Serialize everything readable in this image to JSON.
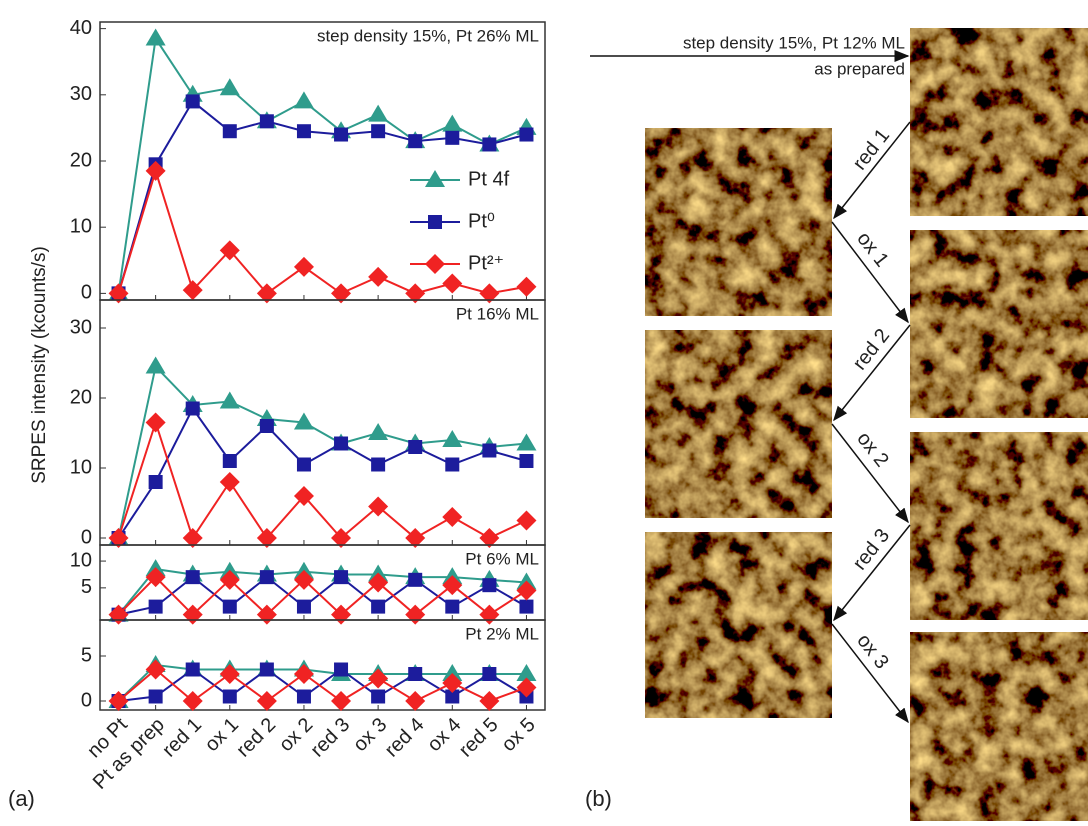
{
  "figure": {
    "panel_a_label": "(a)",
    "panel_b_label": "(b)",
    "ylabel": "SRPES intensity (kcounts/s)"
  },
  "chart_data": [
    {
      "type": "line",
      "annotation": "step density 15%,  Pt 26% ML",
      "legend": "right",
      "categories": [
        "no Pt",
        "Pt as prep",
        "red 1",
        "ox 1",
        "red 2",
        "ox 2",
        "red 3",
        "ox 3",
        "red 4",
        "ox 4",
        "red 5",
        "ox 5"
      ],
      "ylim": [
        -1,
        41
      ],
      "yticks": [
        0,
        10,
        20,
        30,
        40
      ],
      "series": [
        {
          "name": "Pt 4f",
          "color": "#2f9c8c",
          "marker": "triangle",
          "values": [
            0,
            38.5,
            30,
            31,
            26,
            29,
            24.5,
            27,
            23,
            25.5,
            22.5,
            25
          ]
        },
        {
          "name": "Pt⁰",
          "color": "#1c1c9c",
          "marker": "square",
          "values": [
            0,
            19.5,
            29,
            24.5,
            26,
            24.5,
            24,
            24.5,
            23,
            23.5,
            22.5,
            24
          ]
        },
        {
          "name": "Pt²⁺",
          "color": "#f02323",
          "marker": "diamond",
          "values": [
            0,
            18.5,
            0.5,
            6.5,
            0,
            4,
            0,
            2.5,
            0,
            1.5,
            0,
            1
          ]
        }
      ]
    },
    {
      "type": "line",
      "annotation": "Pt 16% ML",
      "ylim": [
        -1,
        34
      ],
      "yticks": [
        0,
        10,
        20,
        30
      ],
      "series": [
        {
          "color": "#2f9c8c",
          "marker": "triangle",
          "values": [
            0,
            24.5,
            19,
            19.5,
            17,
            16.5,
            13.5,
            15,
            13.5,
            14,
            13,
            13.5
          ]
        },
        {
          "color": "#1c1c9c",
          "marker": "square",
          "values": [
            0,
            8,
            18.5,
            11,
            16,
            10.5,
            13.5,
            10.5,
            13,
            10.5,
            12.5,
            11
          ]
        },
        {
          "color": "#f02323",
          "marker": "diamond",
          "values": [
            0,
            16.5,
            0,
            8,
            0,
            6,
            0,
            4.5,
            0,
            3,
            0,
            2.5
          ]
        }
      ]
    },
    {
      "type": "line",
      "annotation": "Pt 6% ML",
      "ylim": [
        -1,
        13
      ],
      "yticks": [
        5,
        10
      ],
      "series": [
        {
          "color": "#2f9c8c",
          "marker": "triangle",
          "values": [
            0,
            8.5,
            7.5,
            8,
            7.5,
            8,
            7.5,
            7.5,
            7,
            7,
            6.5,
            6
          ]
        },
        {
          "color": "#1c1c9c",
          "marker": "square",
          "values": [
            0,
            1.5,
            7,
            1.5,
            7,
            1.5,
            7,
            1.5,
            6.5,
            1.5,
            5.5,
            1.5
          ]
        },
        {
          "color": "#f02323",
          "marker": "diamond",
          "values": [
            0,
            7,
            0,
            6.5,
            0,
            6.5,
            0,
            6,
            0,
            5.5,
            0,
            4.5
          ]
        }
      ]
    },
    {
      "type": "line",
      "annotation": "Pt 2% ML",
      "ylim": [
        -1,
        9
      ],
      "yticks": [
        0,
        5
      ],
      "series": [
        {
          "color": "#2f9c8c",
          "marker": "triangle",
          "values": [
            0,
            4,
            3.5,
            3.5,
            3.5,
            3.5,
            3,
            3,
            3,
            3,
            3,
            3
          ]
        },
        {
          "color": "#1c1c9c",
          "marker": "square",
          "values": [
            0,
            0.5,
            3.5,
            0.5,
            3.5,
            0.5,
            3.5,
            0.5,
            3,
            0.5,
            3,
            0.5
          ]
        },
        {
          "color": "#f02323",
          "marker": "diamond",
          "values": [
            0,
            3.5,
            0,
            3,
            0,
            3,
            0,
            2.5,
            0,
            2,
            0,
            1.5
          ]
        }
      ]
    }
  ],
  "diagram": {
    "header": "step density 15%, Pt 12% ML",
    "start": "as prepared",
    "steps": [
      "red 1",
      "ox 1",
      "red 2",
      "ox 2",
      "red 3",
      "ox 3"
    ]
  }
}
